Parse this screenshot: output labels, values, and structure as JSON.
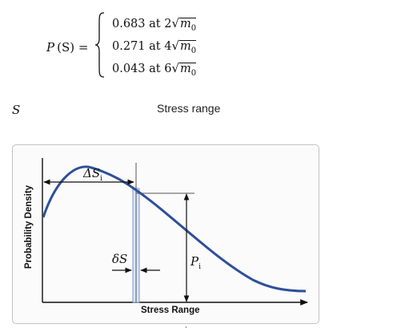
{
  "formula": {
    "lhs_var": "P",
    "lhs_arg": "(S) =",
    "cases": [
      {
        "prob": "0.683",
        "word": "at",
        "mult": "2",
        "var": "m",
        "sub": "0"
      },
      {
        "prob": "0.271",
        "word": "at",
        "mult": "4",
        "var": "m",
        "sub": "0"
      },
      {
        "prob": "0.043",
        "word": "at",
        "mult": "6",
        "var": "m",
        "sub": "0"
      }
    ]
  },
  "symbol_s": "S",
  "caption": "Stress range",
  "diagram": {
    "ylabel": "Probability Density",
    "xlabel": "Stress Range",
    "delta_S_i": {
      "sym": "ΔS",
      "sub": "i"
    },
    "small_delta_S": "δS",
    "P_i": {
      "sym": "P",
      "sub": "i"
    },
    "colors": {
      "curve": "#2f4f9a",
      "strip": "#dbe6f7",
      "strip_edge": "#7b96c8",
      "axes": "#111111"
    }
  }
}
